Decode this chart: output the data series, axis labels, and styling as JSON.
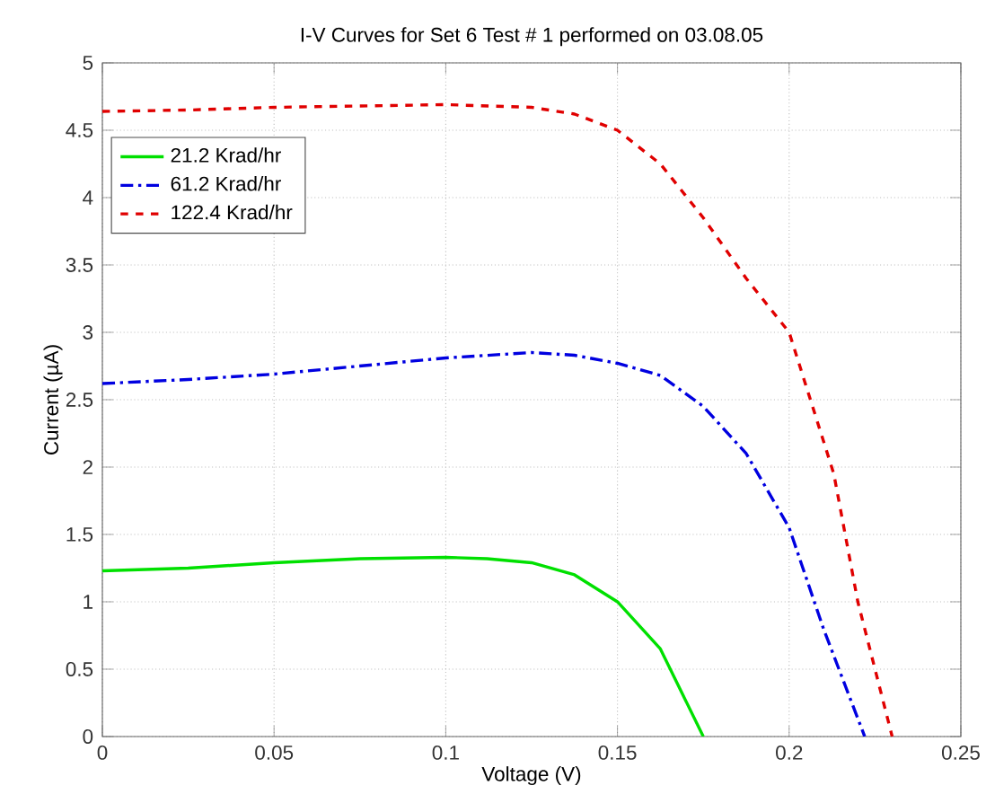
{
  "chart_data": {
    "type": "line",
    "title": "I-V Curves for Set 6 Test # 1 performed on 03.08.05",
    "xlabel": "Voltage (V)",
    "ylabel": "Current (µA)",
    "xlim": [
      0,
      0.25
    ],
    "ylim": [
      0,
      5
    ],
    "xticks": [
      0,
      0.05,
      0.1,
      0.15,
      0.2,
      0.25
    ],
    "yticks": [
      0,
      0.5,
      1,
      1.5,
      2,
      2.5,
      3,
      3.5,
      4,
      4.5,
      5
    ],
    "grid": true,
    "legend": "top left",
    "marker": "none",
    "series": [
      {
        "name": "21.2 Krad/hr",
        "color": "#00e000",
        "line_style": "solid",
        "x": [
          0,
          0.025,
          0.05,
          0.075,
          0.1,
          0.112,
          0.125,
          0.1375,
          0.15,
          0.1625,
          0.175
        ],
        "values": [
          1.23,
          1.25,
          1.29,
          1.32,
          1.33,
          1.32,
          1.29,
          1.2,
          1.0,
          0.65,
          0
        ]
      },
      {
        "name": "61.2 Krad/hr",
        "color": "#0000e0",
        "line_style": "dashdot",
        "x": [
          0,
          0.025,
          0.05,
          0.075,
          0.1,
          0.125,
          0.1375,
          0.15,
          0.1625,
          0.175,
          0.1875,
          0.2,
          0.21,
          0.2175,
          0.222
        ],
        "values": [
          2.62,
          2.65,
          2.69,
          2.75,
          2.81,
          2.85,
          2.83,
          2.77,
          2.68,
          2.45,
          2.1,
          1.55,
          0.8,
          0.3,
          0
        ]
      },
      {
        "name": "122.4 Krad/hr",
        "color": "#e00000",
        "line_style": "dashed",
        "x": [
          0,
          0.025,
          0.05,
          0.075,
          0.1,
          0.125,
          0.1375,
          0.15,
          0.1625,
          0.175,
          0.1875,
          0.2,
          0.213,
          0.22,
          0.23
        ],
        "values": [
          4.64,
          4.65,
          4.67,
          4.68,
          4.69,
          4.67,
          4.62,
          4.5,
          4.25,
          3.85,
          3.4,
          3.0,
          1.95,
          1.0,
          0
        ]
      }
    ]
  }
}
